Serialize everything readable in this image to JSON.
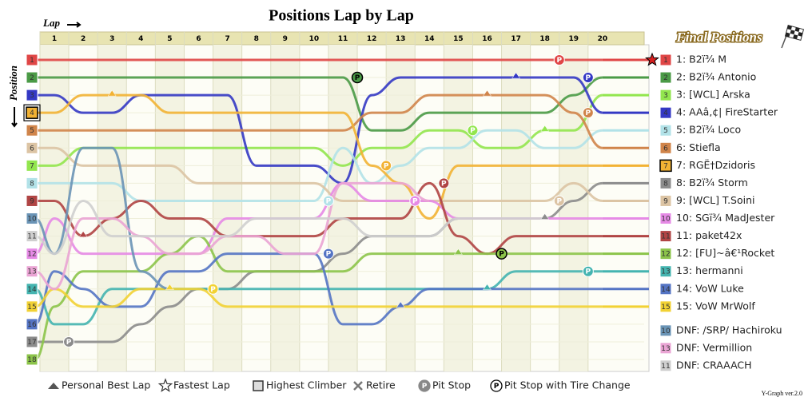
{
  "chart_data": {
    "type": "lap-chart",
    "title": "Positions Lap by Lap",
    "x_label": "Lap",
    "y_label": "Position",
    "final_title": "Final Positions",
    "footer": "Y-Graph ver.2.0",
    "pit_symbol": "P",
    "x": [
      1,
      2,
      3,
      4,
      5,
      6,
      7,
      8,
      9,
      10,
      11,
      12,
      13,
      14,
      15,
      16,
      17,
      18,
      19,
      20
    ],
    "rows": [
      1,
      2,
      3,
      4,
      5,
      6,
      7,
      8,
      9,
      10,
      11,
      12,
      13,
      14,
      15,
      16,
      17,
      18
    ],
    "highest_climber": 6,
    "fastest_lap": 0,
    "series": [
      {
        "name": "1: B2ï¾ M",
        "color": "#e04646",
        "grid": 1,
        "values": [
          1,
          1,
          1,
          1,
          1,
          1,
          1,
          1,
          1,
          1,
          1,
          1,
          1,
          1,
          1,
          1,
          1,
          1,
          1,
          1
        ]
      },
      {
        "name": "2: B2ï¾ Antonio",
        "color": "#4a9a46",
        "grid": 2,
        "values": [
          2,
          2,
          2,
          2,
          2,
          2,
          2,
          2,
          2,
          2,
          2,
          5,
          5,
          4,
          4,
          4,
          4,
          4,
          3,
          2
        ]
      },
      {
        "name": "3: [WCL] Arska",
        "color": "#92e64e",
        "grid": 7,
        "values": [
          7,
          6,
          6,
          6,
          6,
          6,
          6,
          6,
          6,
          6,
          7,
          6,
          6,
          5,
          5,
          6,
          6,
          5,
          5,
          3
        ]
      },
      {
        "name": "4: AAâ‚¢| FireStarter",
        "color": "#3438c4",
        "grid": 3,
        "values": [
          3,
          4,
          4,
          3,
          3,
          3,
          3,
          7,
          7,
          7,
          8,
          3,
          2,
          2,
          2,
          2,
          2,
          2,
          2,
          4
        ]
      },
      {
        "name": "5: B2ï¾ Loco",
        "color": "#b2e2e8",
        "grid": 8,
        "values": [
          8,
          8,
          8,
          9,
          9,
          9,
          9,
          9,
          9,
          9,
          6,
          8,
          7,
          6,
          6,
          5,
          5,
          6,
          6,
          5
        ]
      },
      {
        "name": "6: Stiefla",
        "color": "#d0844a",
        "grid": 5,
        "values": [
          5,
          5,
          5,
          5,
          5,
          5,
          5,
          5,
          5,
          5,
          5,
          4,
          4,
          3,
          3,
          3,
          3,
          3,
          4,
          6
        ]
      },
      {
        "name": "7: RGË†Dzidoris",
        "color": "#f2b234",
        "grid": 4,
        "values": [
          4,
          3,
          3,
          3,
          4,
          4,
          4,
          4,
          4,
          4,
          4,
          7,
          8,
          10,
          7,
          7,
          7,
          7,
          7,
          7
        ]
      },
      {
        "name": "8: B2ï¾ Storm",
        "color": "#8c8c8c",
        "grid": 17,
        "values": [
          17,
          17,
          17,
          16,
          15,
          14,
          14,
          13,
          13,
          13,
          12,
          11,
          11,
          11,
          10,
          10,
          10,
          10,
          9,
          8
        ]
      },
      {
        "name": "9: [WCL] T.Soini",
        "color": "#dcc4a4",
        "grid": 6,
        "values": [
          6,
          7,
          7,
          7,
          7,
          8,
          8,
          8,
          8,
          8,
          9,
          9,
          9,
          9,
          9,
          9,
          9,
          9,
          8,
          9
        ]
      },
      {
        "name": "10: SGï¾ MadJester",
        "color": "#e68ae6",
        "grid": 12,
        "values": [
          10,
          12,
          12,
          12,
          12,
          12,
          10,
          10,
          10,
          10,
          8,
          9,
          9,
          9,
          10,
          10,
          10,
          10,
          10,
          10
        ]
      },
      {
        "name": "11: paket42x",
        "color": "#b04444",
        "grid": 9,
        "values": [
          9,
          11,
          10,
          9,
          10,
          10,
          11,
          11,
          11,
          11,
          10,
          10,
          10,
          8,
          11,
          12,
          11,
          11,
          11,
          11
        ]
      },
      {
        "name": "12: [FU]~â€¹Rocket",
        "color": "#8cc44a",
        "grid": 18,
        "values": [
          15,
          13,
          13,
          13,
          12,
          11,
          13,
          13,
          13,
          13,
          13,
          12,
          12,
          12,
          12,
          12,
          12,
          12,
          12,
          12
        ]
      },
      {
        "name": "13: hermanni",
        "color": "#44b4b0",
        "grid": 14,
        "values": [
          16,
          16,
          14,
          14,
          14,
          14,
          14,
          14,
          14,
          14,
          14,
          14,
          14,
          14,
          14,
          14,
          13,
          13,
          13,
          13
        ]
      },
      {
        "name": "14: VoW Luke",
        "color": "#5474c4",
        "grid": 16,
        "values": [
          13,
          14,
          15,
          15,
          13,
          13,
          12,
          12,
          12,
          12,
          16,
          16,
          15,
          14,
          14,
          14,
          14,
          14,
          14,
          14
        ]
      },
      {
        "name": "15: VoW MrWolf",
        "color": "#f2d234",
        "grid": 15,
        "values": [
          14,
          15,
          15,
          14,
          14,
          14,
          15,
          15,
          15,
          15,
          15,
          15,
          15,
          15,
          15,
          15,
          15,
          15,
          15,
          15
        ]
      },
      {
        "name": "DNF: /SRP/ Hachiroku",
        "color": "#6a94b6",
        "grid": 10,
        "values": [
          12,
          6,
          6,
          13,
          14,
          null,
          null,
          null,
          null,
          null,
          null,
          null,
          null,
          null,
          null,
          null,
          null,
          null,
          null,
          null
        ]
      },
      {
        "name": "DNF: Vermillion",
        "color": "#eaa4d4",
        "grid": 13,
        "values": [
          14,
          10,
          10,
          11,
          12,
          12,
          11,
          11,
          12,
          12,
          8,
          8,
          8,
          9,
          null,
          null,
          null,
          null,
          null,
          null
        ]
      },
      {
        "name": "DNF: CRAAACH",
        "color": "#cfcfcf",
        "grid": 11,
        "values": [
          12,
          9,
          11,
          11,
          11,
          11,
          11,
          10,
          10,
          10,
          10,
          11,
          11,
          11,
          10,
          10,
          10,
          10,
          null,
          null
        ]
      }
    ],
    "events": [
      {
        "series": 0,
        "lap": 18,
        "type": "pit"
      },
      {
        "series": 1,
        "lap": 11,
        "type": "tire"
      },
      {
        "series": 3,
        "lap": 19,
        "type": "pit"
      },
      {
        "series": 3,
        "lap": 17,
        "type": "best"
      },
      {
        "series": 5,
        "lap": 19,
        "type": "pit"
      },
      {
        "series": 5,
        "lap": 16,
        "type": "best"
      },
      {
        "series": 2,
        "lap": 15,
        "type": "pit"
      },
      {
        "series": 2,
        "lap": 18,
        "type": "best"
      },
      {
        "series": 4,
        "lap": 10,
        "type": "pit"
      },
      {
        "series": 6,
        "lap": 12,
        "type": "pit"
      },
      {
        "series": 6,
        "lap": 3,
        "type": "best"
      },
      {
        "series": 9,
        "lap": 13,
        "type": "pit"
      },
      {
        "series": 10,
        "lap": 14,
        "type": "pit"
      },
      {
        "series": 10,
        "lap": 2,
        "type": "best"
      },
      {
        "series": 11,
        "lap": 16,
        "type": "tire"
      },
      {
        "series": 11,
        "lap": 15,
        "type": "best"
      },
      {
        "series": 12,
        "lap": 19,
        "type": "pit"
      },
      {
        "series": 12,
        "lap": 16,
        "type": "best"
      },
      {
        "series": 13,
        "lap": 10,
        "type": "pit"
      },
      {
        "series": 13,
        "lap": 13,
        "type": "best"
      },
      {
        "series": 14,
        "lap": 6,
        "type": "pit"
      },
      {
        "series": 14,
        "lap": 5,
        "type": "best"
      },
      {
        "series": 7,
        "lap": 1,
        "type": "pit"
      },
      {
        "series": 7,
        "lap": 18,
        "type": "best"
      },
      {
        "series": 8,
        "lap": 18,
        "type": "pit"
      }
    ],
    "legend": [
      {
        "symbol": "best",
        "label": "Personal Best Lap"
      },
      {
        "symbol": "star",
        "label": "Fastest Lap"
      },
      {
        "symbol": "climber",
        "label": "Highest Climber"
      },
      {
        "symbol": "retire",
        "label": "Retire"
      },
      {
        "symbol": "pit",
        "label": "Pit Stop"
      },
      {
        "symbol": "tire",
        "label": "Pit Stop with Tire Change"
      }
    ]
  }
}
